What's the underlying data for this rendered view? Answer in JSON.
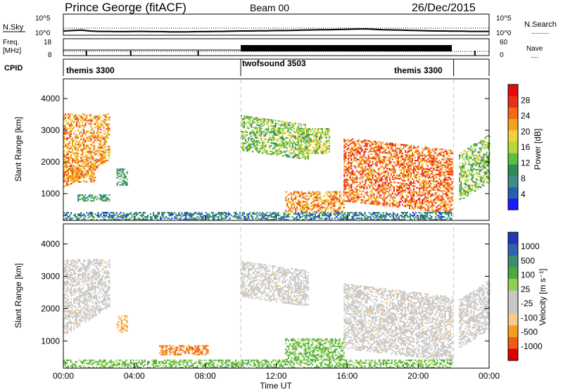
{
  "header": {
    "title": "Prince George (fitACF)",
    "beam": "Beam 00",
    "date": "26/Dec/2015"
  },
  "noise_panel": {
    "left_label": "N.Sky",
    "left_ticks": [
      "10^5",
      "10^0"
    ],
    "right_ticks": [
      "10^5",
      "10^0"
    ],
    "right_label": "N.Search",
    "right_legend": "........."
  },
  "freq_panel": {
    "left_label_1": "Freq.",
    "left_label_2": "[MHz]",
    "left_ticks": [
      "18",
      "8"
    ],
    "right_ticks": [
      "60",
      "0"
    ],
    "right_label": "Nave",
    "right_legend": "....",
    "cpid_label": "CPID"
  },
  "modes": [
    {
      "name": "themis 3300",
      "start_h": 0,
      "end_h": 10
    },
    {
      "name": "twofsound 3503",
      "start_h": 10,
      "end_h": 22
    },
    {
      "name": "themis 3300",
      "start_h": 22,
      "end_h": 22
    }
  ],
  "colors": {
    "power_scale": [
      "#1a1aff",
      "#2a5fb0",
      "#3c8c8c",
      "#2e8b57",
      "#5cbf3e",
      "#b7d63a",
      "#f2d23a",
      "#f7a21c",
      "#f36a12",
      "#e8301a",
      "#e50c0c"
    ],
    "velocity_scale": [
      "#e00000",
      "#ef5c10",
      "#f59d1f",
      "#f9c98d",
      "#c8c8c8",
      "#c8c8c8",
      "#8fd14f",
      "#4fa83c",
      "#3a8f6a",
      "#2f63b0",
      "#2437b5"
    ],
    "gap_line": "#c8c8c8"
  },
  "chart_data": [
    {
      "type": "line",
      "name": "noise",
      "title": "Prince George (fitACF)",
      "x": [
        0,
        0.5,
        1,
        1.5,
        2,
        2.5,
        3,
        3.5,
        4,
        4.5,
        5,
        5.5,
        6,
        6.5,
        7,
        7.5,
        8,
        8.5,
        9,
        9.5,
        10,
        10.5,
        11,
        11.5,
        12,
        12.5,
        13,
        13.5,
        14,
        14.5,
        15,
        15.5,
        16,
        16.5,
        17,
        17.5,
        18,
        18.5,
        19,
        19.5,
        20,
        20.5,
        21,
        21.5,
        22,
        22.5,
        23,
        23.5,
        24
      ],
      "series": [
        {
          "name": "N.Sky",
          "values": [
            1.0,
            1.1,
            1.2,
            1.0,
            0.9,
            0.9,
            0.85,
            0.85,
            0.9,
            0.9,
            0.85,
            0.85,
            0.8,
            0.8,
            0.8,
            0.85,
            0.85,
            0.9,
            0.9,
            0.95,
            1.0,
            1.0,
            1.05,
            1.05,
            1.1,
            1.1,
            1.15,
            1.2,
            1.25,
            1.3,
            1.3,
            1.35,
            1.4,
            1.45,
            1.5,
            1.4,
            1.3,
            1.25,
            1.2,
            1.15,
            1.1,
            1.05,
            1.0,
            1.0,
            0.95,
            0.95,
            0.9,
            0.9,
            0.9
          ]
        }
      ],
      "ylim": [
        0,
        5
      ]
    },
    {
      "type": "line",
      "name": "frequency",
      "x": [
        0,
        10,
        22,
        24
      ],
      "series": [
        {
          "name": "Freq.",
          "values": [
            10,
            10,
            10,
            10
          ]
        },
        {
          "name": "Nave",
          "values": [
            25,
            53,
            25,
            25
          ]
        }
      ],
      "ylim": [
        8,
        18
      ]
    },
    {
      "type": "heatmap",
      "name": "power",
      "xlabel": "",
      "ylabel": "Slant Range [km]",
      "x_ticks": [
        "00:00",
        "04:00",
        "08:00",
        "12:00",
        "16:00",
        "20:00",
        "00:00"
      ],
      "y_ticks": [
        1000,
        2000,
        3000,
        4000
      ],
      "xlim": [
        0,
        24
      ],
      "ylim": [
        180,
        4600
      ],
      "colorbar_label": "Power [dB]",
      "colorbar_ticks": [
        4,
        8,
        12,
        16,
        20,
        24,
        28
      ],
      "blobs": [
        {
          "t0": 0.0,
          "t1": 2.6,
          "r0": 1200,
          "r1": 3500,
          "slope": 900,
          "peak": 26
        },
        {
          "t0": 0.0,
          "t1": 1.8,
          "r0": 1400,
          "r1": 1900,
          "slope": 0,
          "peak": 26
        },
        {
          "t0": 0.8,
          "t1": 2.6,
          "r0": 800,
          "r1": 1000,
          "slope": 0,
          "peak": 14
        },
        {
          "t0": 3.0,
          "t1": 3.6,
          "r0": 1300,
          "r1": 1800,
          "slope": 0,
          "peak": 14
        },
        {
          "t0": 10.0,
          "t1": 13.8,
          "r0": 2400,
          "r1": 3500,
          "slope": -300,
          "peak": 18
        },
        {
          "t0": 13.2,
          "t1": 15.0,
          "r0": 2300,
          "r1": 3100,
          "slope": 0,
          "peak": 20
        },
        {
          "t0": 12.5,
          "t1": 15.8,
          "r0": 450,
          "r1": 1100,
          "slope": 0,
          "peak": 26
        },
        {
          "t0": 15.8,
          "t1": 21.9,
          "r0": 800,
          "r1": 2800,
          "slope": -400,
          "peak": 28
        },
        {
          "t0": 22.3,
          "t1": 24.0,
          "r0": 800,
          "r1": 2300,
          "slope": 600,
          "peak": 18
        },
        {
          "t0": 0.0,
          "t1": 21.9,
          "r0": 200,
          "r1": 450,
          "slope": 0,
          "peak": 12
        }
      ]
    },
    {
      "type": "heatmap",
      "name": "velocity",
      "xlabel": "Time UT",
      "ylabel": "Slant Range [km]",
      "x_ticks": [
        "00:00",
        "04:00",
        "08:00",
        "12:00",
        "16:00",
        "20:00",
        "00:00"
      ],
      "y_ticks": [
        1000,
        2000,
        3000,
        4000
      ],
      "xlim": [
        0,
        24
      ],
      "ylim": [
        180,
        4600
      ],
      "colorbar_label": "Velocity [m s⁻¹]",
      "colorbar_ticks": [
        1000,
        500,
        100,
        25,
        -25,
        -100,
        -500,
        -1000
      ],
      "blobs": [
        {
          "t0": 0.0,
          "t1": 2.6,
          "r0": 1200,
          "r1": 3500,
          "slope": 900,
          "vel": 0
        },
        {
          "t0": 3.0,
          "t1": 3.6,
          "r0": 1300,
          "r1": 1800,
          "vel": -200
        },
        {
          "t0": 5.4,
          "t1": 8.2,
          "r0": 600,
          "r1": 900,
          "vel": -300
        },
        {
          "t0": 10.0,
          "t1": 13.8,
          "r0": 2400,
          "r1": 3500,
          "slope": -300,
          "vel": 0
        },
        {
          "t0": 12.5,
          "t1": 15.8,
          "r0": 450,
          "r1": 1100,
          "vel": 150
        },
        {
          "t0": 15.8,
          "t1": 21.9,
          "r0": 800,
          "r1": 2800,
          "slope": -400,
          "vel": 0
        },
        {
          "t0": 22.3,
          "t1": 24.0,
          "r0": 800,
          "r1": 2300,
          "slope": 600,
          "vel": 0
        },
        {
          "t0": 0.0,
          "t1": 21.9,
          "r0": 200,
          "r1": 450,
          "vel": 120
        }
      ]
    }
  ]
}
